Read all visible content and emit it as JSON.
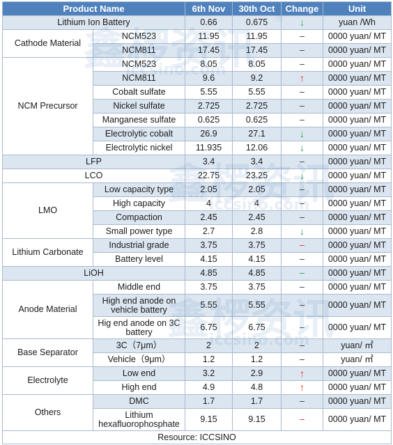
{
  "header": {
    "product": "Product Name",
    "d1": "6th Nov",
    "d2": "30th Oct",
    "change": "Change",
    "unit": "Unit"
  },
  "rows": {
    "r1": {
      "group": "Lithium Ion Battery",
      "v1": "0.66",
      "v2": "0.675",
      "chg": "↓",
      "unit": "yuan /Wh"
    },
    "r2": {
      "group": "Cathode Material",
      "item": "NCM523",
      "v1": "11.95",
      "v2": "11.95",
      "chg": "–",
      "unit": "0000 yuan/ MT"
    },
    "r3": {
      "item": "NCM811",
      "v1": "17.45",
      "v2": "17.45",
      "chg": "–",
      "unit": "0000 yuan/ MT"
    },
    "r4": {
      "group": "NCM Precursor",
      "item": "NCM523",
      "v1": "8.05",
      "v2": "8.05",
      "chg": "–",
      "unit": "0000 yuan/ MT"
    },
    "r5": {
      "item": "NCM811",
      "v1": "9.6",
      "v2": "9.2",
      "chg": "↑",
      "unit": "0000 yuan/ MT"
    },
    "r6": {
      "item": "Cobalt sulfate",
      "v1": "5.55",
      "v2": "5.55",
      "chg": "–",
      "unit": "0000 yuan/ MT"
    },
    "r7": {
      "item": "Nickel sulfate",
      "v1": "2.725",
      "v2": "2.725",
      "chg": "–",
      "unit": "0000 yuan/ MT"
    },
    "r8": {
      "item": "Manganese sulfate",
      "v1": "0.625",
      "v2": "0.625",
      "chg": "–",
      "unit": "0000 yuan/ MT"
    },
    "r9": {
      "item": "Electrolytic cobalt",
      "v1": "26.9",
      "v2": "27.1",
      "chg": "↓",
      "unit": "0000 yuan/ MT"
    },
    "r10": {
      "item": "Electrolytic nickel",
      "v1": "11.935",
      "v2": "12.06",
      "chg": "↓",
      "unit": "0000 yuan/ MT"
    },
    "r11": {
      "group": "LFP",
      "v1": "3.4",
      "v2": "3.4",
      "chg": "–",
      "unit": "0000 yuan/ MT"
    },
    "r12": {
      "group": "LCO",
      "v1": "22.75",
      "v2": "23.25",
      "chg": "↓",
      "unit": "0000 yuan/ MT"
    },
    "r13": {
      "group": "LMO",
      "item": "Low capacity type",
      "v1": "2.05",
      "v2": "2.05",
      "chg": "–",
      "unit": "0000 yuan/ MT"
    },
    "r14": {
      "item": "High capacity",
      "v1": "4",
      "v2": "4",
      "chg": "–",
      "unit": "0000 yuan/ MT"
    },
    "r15": {
      "item": "Compaction",
      "v1": "2.45",
      "v2": "2.45",
      "chg": "–",
      "unit": "0000 yuan/ MT"
    },
    "r16": {
      "item": "Small power type",
      "v1": "2.7",
      "v2": "2.8",
      "chg": "↓",
      "unit": "0000 yuan/ MT"
    },
    "r17": {
      "group": "Lithium Carbonate",
      "item": "Industrial grade",
      "v1": "3.75",
      "v2": "3.75",
      "chg": "–",
      "unit": "0000 yuan/ MT"
    },
    "r18": {
      "item": "Battery level",
      "v1": "4.15",
      "v2": "4.15",
      "chg": "–",
      "unit": "0000 yuan/ MT"
    },
    "r19": {
      "group": "LiOH",
      "v1": "4.85",
      "v2": "4.85",
      "chg": "–",
      "unit": "0000 yuan/ MT"
    },
    "r20": {
      "group": "Anode Material",
      "item": "Middle end",
      "v1": "3.75",
      "v2": "3.75",
      "chg": "–",
      "unit": "0000 yuan/ MT"
    },
    "r21": {
      "item": "High end anode on vehicle battery",
      "v1": "5.55",
      "v2": "5.55",
      "chg": "–",
      "unit": "0000 yuan/ MT"
    },
    "r22": {
      "item": "Hig end anode on 3C battery",
      "v1": "6.75",
      "v2": "6.75",
      "chg": "–",
      "unit": "0000 yuan/ MT"
    },
    "r23": {
      "group": "Base Separator",
      "item": "3C（7μm）",
      "v1": "2",
      "v2": "2",
      "chg": "–",
      "unit": "yuan/ ㎡"
    },
    "r24": {
      "item": "Vehicle（9μm）",
      "v1": "1.2",
      "v2": "1.2",
      "chg": "–",
      "unit": "yuan/ ㎡"
    },
    "r25": {
      "group": "Electrolyte",
      "item": "Low end",
      "v1": "3.2",
      "v2": "2.9",
      "chg": "↑",
      "unit": "0000 yuan/ MT"
    },
    "r26": {
      "item": "High end",
      "v1": "4.9",
      "v2": "4.8",
      "chg": "↑",
      "unit": "0000 yuan/ MT"
    },
    "r27": {
      "group": "Others",
      "item": "DMC",
      "v1": "1.7",
      "v2": "1.7",
      "chg": "–",
      "unit": "0000 yuan/ MT"
    },
    "r28": {
      "item": "Lithium hexafluorophosphate",
      "v1": "9.15",
      "v2": "9.15",
      "chg": "–",
      "unit": "0000 yuan/ MT"
    }
  },
  "footer": {
    "source": "Resource: ICCSINO"
  },
  "watermark": {
    "cn": "鑫椤资讯",
    "en": "iccsino.com",
    "mark": "®"
  },
  "colors": {
    "header_bg": "#4f81bd",
    "stripe_bg": "#dce6f1",
    "up": "#e8261c",
    "down": "#21a54a"
  }
}
